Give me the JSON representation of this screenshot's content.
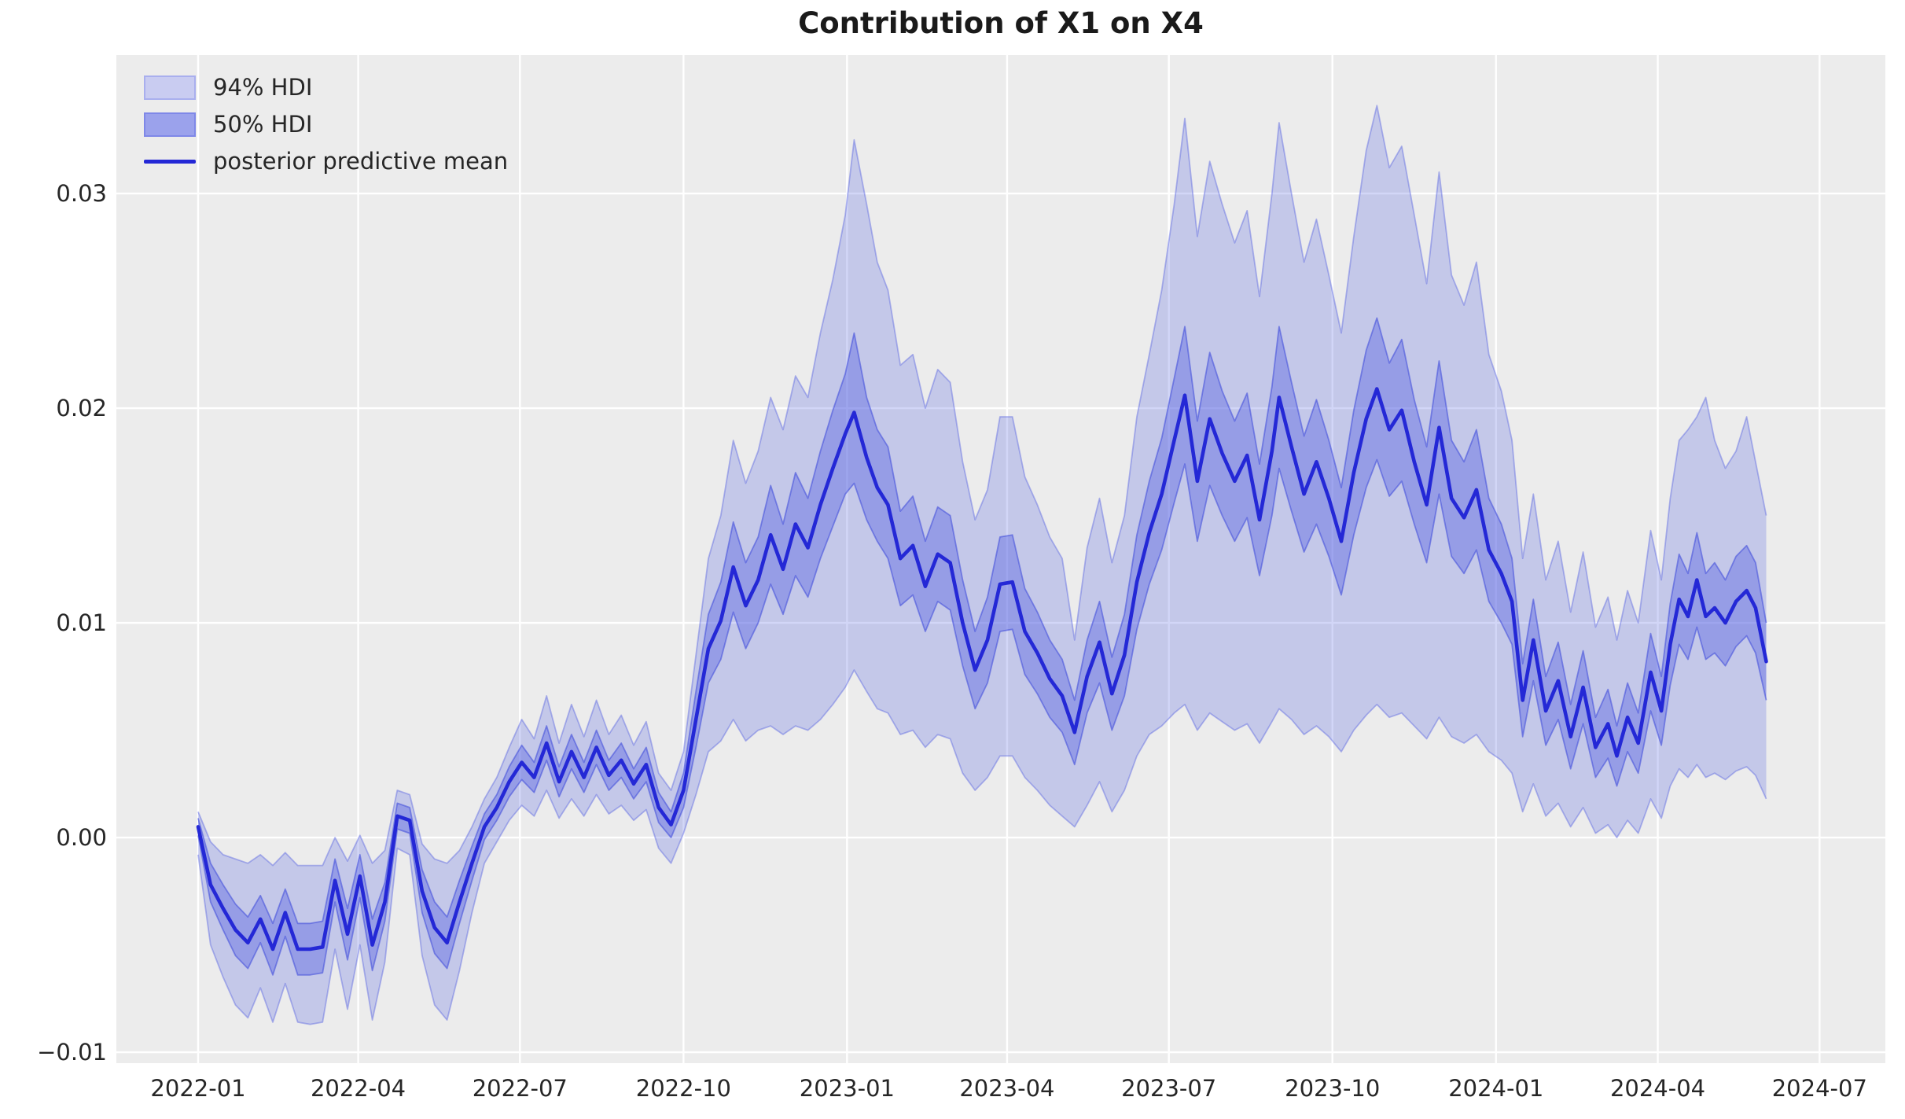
{
  "title": "Contribution of X1 on X4",
  "legend": {
    "items": [
      {
        "label": "94% HDI",
        "type": "patch",
        "fill": "#c9ccf1",
        "border": "#a9afee"
      },
      {
        "label": "50% HDI",
        "type": "patch",
        "fill": "#9ba2ec",
        "border": "#7f88e8"
      },
      {
        "label": "posterior predictive mean",
        "type": "line",
        "stroke": "#2428d6"
      }
    ]
  },
  "chart_data": {
    "type": "line",
    "title": "Contribution of X1 on X4",
    "xlabel": "",
    "ylabel": "",
    "grid": true,
    "legend_position": "upper left",
    "figure_bg": "#ffffff",
    "axes_bg": "#ececec",
    "gridline_color": "#ffffff",
    "colors": {
      "hdi94_fill": "rgba(80,95,224,0.26)",
      "hdi94_edge": "rgba(90,102,226,0.45)",
      "hdi50_fill": "rgba(85,97,226,0.42)",
      "hdi50_edge": "rgba(70,82,220,0.60)",
      "mean_line": "#2428d6"
    },
    "xlim": [
      "2021-11-16",
      "2024-08-07"
    ],
    "ylim": [
      -0.01051,
      0.03645
    ],
    "x_ticks": [
      {
        "date": "2022-01-01",
        "label": "2022-01"
      },
      {
        "date": "2022-04-01",
        "label": "2022-04"
      },
      {
        "date": "2022-07-01",
        "label": "2022-07"
      },
      {
        "date": "2022-10-01",
        "label": "2022-10"
      },
      {
        "date": "2023-01-01",
        "label": "2023-01"
      },
      {
        "date": "2023-04-01",
        "label": "2023-04"
      },
      {
        "date": "2023-07-01",
        "label": "2023-07"
      },
      {
        "date": "2023-10-01",
        "label": "2023-10"
      },
      {
        "date": "2024-01-01",
        "label": "2024-01"
      },
      {
        "date": "2024-04-01",
        "label": "2024-04"
      },
      {
        "date": "2024-07-01",
        "label": "2024-07"
      }
    ],
    "y_ticks": [
      {
        "value": -0.01,
        "label": "−0.01"
      },
      {
        "value": 0.0,
        "label": "0.00"
      },
      {
        "value": 0.01,
        "label": "0.01"
      },
      {
        "value": 0.02,
        "label": "0.02"
      },
      {
        "value": 0.03,
        "label": "0.03"
      }
    ],
    "series_names": [
      "94% HDI",
      "50% HDI",
      "posterior predictive mean"
    ],
    "columns": [
      "date",
      "hdi94_lower",
      "hdi50_lower",
      "mean",
      "hdi50_upper",
      "hdi94_upper"
    ],
    "points": [
      [
        "2022-01-01",
        -0.0008,
        0.0001,
        0.0005,
        0.0009,
        0.0012
      ],
      [
        "2022-01-08",
        -0.005,
        -0.003,
        -0.0022,
        -0.0012,
        -0.0002
      ],
      [
        "2022-01-15",
        -0.0065,
        -0.0043,
        -0.0033,
        -0.0022,
        -0.0008
      ],
      [
        "2022-01-22",
        -0.0078,
        -0.0055,
        -0.0043,
        -0.0031,
        -0.001
      ],
      [
        "2022-01-29",
        -0.0084,
        -0.0061,
        -0.0049,
        -0.0037,
        -0.0012
      ],
      [
        "2022-02-05",
        -0.007,
        -0.0049,
        -0.0038,
        -0.0027,
        -0.0008
      ],
      [
        "2022-02-12",
        -0.0086,
        -0.0064,
        -0.0052,
        -0.004,
        -0.0013
      ],
      [
        "2022-02-19",
        -0.0068,
        -0.0046,
        -0.0035,
        -0.0024,
        -0.0007
      ],
      [
        "2022-02-26",
        -0.0086,
        -0.0064,
        -0.0052,
        -0.004,
        -0.0013
      ],
      [
        "2022-03-05",
        -0.0087,
        -0.0064,
        -0.0052,
        -0.004,
        -0.0013
      ],
      [
        "2022-03-12",
        -0.0086,
        -0.0063,
        -0.0051,
        -0.0039,
        -0.0013
      ],
      [
        "2022-03-19",
        -0.0052,
        -0.003,
        -0.002,
        -0.001,
        0.0
      ],
      [
        "2022-03-26",
        -0.008,
        -0.0057,
        -0.0045,
        -0.0033,
        -0.0011
      ],
      [
        "2022-04-02",
        -0.005,
        -0.0028,
        -0.0018,
        -0.0008,
        0.0001
      ],
      [
        "2022-04-09",
        -0.0085,
        -0.0062,
        -0.005,
        -0.0038,
        -0.0012
      ],
      [
        "2022-04-16",
        -0.0058,
        -0.0039,
        -0.003,
        -0.0021,
        -0.0006
      ],
      [
        "2022-04-23",
        -0.0005,
        0.0004,
        0.001,
        0.0016,
        0.0022
      ],
      [
        "2022-04-30",
        -0.0008,
        0.0002,
        0.0008,
        0.0014,
        0.002
      ],
      [
        "2022-05-07",
        -0.0055,
        -0.0035,
        -0.0025,
        -0.0015,
        -0.0003
      ],
      [
        "2022-05-14",
        -0.0078,
        -0.0054,
        -0.0042,
        -0.003,
        -0.001
      ],
      [
        "2022-05-21",
        -0.0085,
        -0.0061,
        -0.0049,
        -0.0037,
        -0.0012
      ],
      [
        "2022-05-28",
        -0.0062,
        -0.004,
        -0.003,
        -0.002,
        -0.0006
      ],
      [
        "2022-06-04",
        -0.0035,
        -0.002,
        -0.0012,
        -0.0004,
        0.0005
      ],
      [
        "2022-06-11",
        -0.0012,
        -0.0001,
        0.0005,
        0.0011,
        0.0018
      ],
      [
        "2022-06-18",
        -0.0002,
        0.0008,
        0.0014,
        0.002,
        0.0028
      ],
      [
        "2022-06-25",
        0.0008,
        0.0019,
        0.0026,
        0.0033,
        0.0042
      ],
      [
        "2022-07-02",
        0.0015,
        0.0027,
        0.0035,
        0.0043,
        0.0055
      ],
      [
        "2022-07-09",
        0.001,
        0.0021,
        0.0028,
        0.0035,
        0.0046
      ],
      [
        "2022-07-16",
        0.0022,
        0.0036,
        0.0044,
        0.0052,
        0.0066
      ],
      [
        "2022-07-23",
        0.0009,
        0.0019,
        0.0026,
        0.0033,
        0.0044
      ],
      [
        "2022-07-30",
        0.0018,
        0.0032,
        0.004,
        0.0048,
        0.0062
      ],
      [
        "2022-08-06",
        0.001,
        0.0021,
        0.0028,
        0.0035,
        0.0047
      ],
      [
        "2022-08-13",
        0.002,
        0.0034,
        0.0042,
        0.005,
        0.0064
      ],
      [
        "2022-08-20",
        0.0011,
        0.0022,
        0.0029,
        0.0036,
        0.0048
      ],
      [
        "2022-08-27",
        0.0015,
        0.0028,
        0.0036,
        0.0044,
        0.0057
      ],
      [
        "2022-09-03",
        0.0008,
        0.0018,
        0.0025,
        0.0032,
        0.0043
      ],
      [
        "2022-09-10",
        0.0013,
        0.0026,
        0.0034,
        0.0042,
        0.0054
      ],
      [
        "2022-09-17",
        -0.0005,
        0.0007,
        0.0014,
        0.0021,
        0.003
      ],
      [
        "2022-09-24",
        -0.0012,
        0.0,
        0.0006,
        0.0012,
        0.0022
      ],
      [
        "2022-10-01",
        0.0002,
        0.0014,
        0.0022,
        0.003,
        0.004
      ],
      [
        "2022-10-08",
        0.002,
        0.0042,
        0.0055,
        0.0068,
        0.0085
      ],
      [
        "2022-10-15",
        0.004,
        0.0072,
        0.0088,
        0.0104,
        0.013
      ],
      [
        "2022-10-22",
        0.0045,
        0.0083,
        0.0101,
        0.0119,
        0.015
      ],
      [
        "2022-10-29",
        0.0055,
        0.0105,
        0.0126,
        0.0147,
        0.0185
      ],
      [
        "2022-11-05",
        0.0045,
        0.0088,
        0.0108,
        0.0128,
        0.0165
      ],
      [
        "2022-11-12",
        0.005,
        0.01,
        0.012,
        0.014,
        0.018
      ],
      [
        "2022-11-19",
        0.0052,
        0.0118,
        0.0141,
        0.0164,
        0.0205
      ],
      [
        "2022-11-26",
        0.0048,
        0.0104,
        0.0125,
        0.0146,
        0.019
      ],
      [
        "2022-12-03",
        0.0052,
        0.0122,
        0.0146,
        0.017,
        0.0215
      ],
      [
        "2022-12-10",
        0.005,
        0.0112,
        0.0135,
        0.0158,
        0.0205
      ],
      [
        "2022-12-17",
        0.0055,
        0.013,
        0.0155,
        0.018,
        0.0235
      ],
      [
        "2022-12-24",
        0.0062,
        0.0145,
        0.0172,
        0.0199,
        0.026
      ],
      [
        "2022-12-31",
        0.007,
        0.016,
        0.0188,
        0.0216,
        0.029
      ],
      [
        "2023-01-05",
        0.0078,
        0.0165,
        0.0198,
        0.0235,
        0.0325
      ],
      [
        "2023-01-12",
        0.0068,
        0.0148,
        0.0177,
        0.0205,
        0.0295
      ],
      [
        "2023-01-18",
        0.006,
        0.0138,
        0.0163,
        0.019,
        0.0268
      ],
      [
        "2023-01-24",
        0.0058,
        0.013,
        0.0155,
        0.0182,
        0.0255
      ],
      [
        "2023-01-31",
        0.0048,
        0.0108,
        0.013,
        0.0152,
        0.022
      ],
      [
        "2023-02-07",
        0.005,
        0.0113,
        0.0136,
        0.0159,
        0.0225
      ],
      [
        "2023-02-14",
        0.0042,
        0.0096,
        0.0117,
        0.0138,
        0.02
      ],
      [
        "2023-02-21",
        0.0048,
        0.011,
        0.0132,
        0.0154,
        0.0218
      ],
      [
        "2023-02-28",
        0.0046,
        0.0106,
        0.0128,
        0.015,
        0.0212
      ],
      [
        "2023-03-07",
        0.003,
        0.008,
        0.01,
        0.012,
        0.0175
      ],
      [
        "2023-03-14",
        0.0022,
        0.006,
        0.0078,
        0.0096,
        0.0148
      ],
      [
        "2023-03-21",
        0.0028,
        0.0072,
        0.0092,
        0.0112,
        0.0162
      ],
      [
        "2023-03-28",
        0.0038,
        0.0096,
        0.0118,
        0.014,
        0.0196
      ],
      [
        "2023-04-04",
        0.0038,
        0.0097,
        0.0119,
        0.0141,
        0.0196
      ],
      [
        "2023-04-11",
        0.0028,
        0.0076,
        0.0096,
        0.0116,
        0.0168
      ],
      [
        "2023-04-18",
        0.0022,
        0.0067,
        0.0086,
        0.0105,
        0.0155
      ],
      [
        "2023-04-25",
        0.0015,
        0.0056,
        0.0074,
        0.0092,
        0.014
      ],
      [
        "2023-05-02",
        0.001,
        0.0049,
        0.0066,
        0.0083,
        0.013
      ],
      [
        "2023-05-09",
        0.0005,
        0.0034,
        0.0049,
        0.0064,
        0.0092
      ],
      [
        "2023-05-16",
        0.0015,
        0.0058,
        0.0075,
        0.0092,
        0.0135
      ],
      [
        "2023-05-23",
        0.0026,
        0.0072,
        0.0091,
        0.011,
        0.0158
      ],
      [
        "2023-05-30",
        0.0012,
        0.005,
        0.0067,
        0.0084,
        0.0128
      ],
      [
        "2023-06-06",
        0.0022,
        0.0066,
        0.0085,
        0.0104,
        0.015
      ],
      [
        "2023-06-13",
        0.0038,
        0.0097,
        0.0119,
        0.0141,
        0.0196
      ],
      [
        "2023-06-20",
        0.0048,
        0.0118,
        0.0142,
        0.0166,
        0.0225
      ],
      [
        "2023-06-27",
        0.0052,
        0.0134,
        0.016,
        0.0186,
        0.0255
      ],
      [
        "2023-07-04",
        0.0058,
        0.0156,
        0.0185,
        0.0214,
        0.0295
      ],
      [
        "2023-07-10",
        0.0062,
        0.0174,
        0.0206,
        0.0238,
        0.0335
      ],
      [
        "2023-07-17",
        0.005,
        0.0138,
        0.0166,
        0.0194,
        0.028
      ],
      [
        "2023-07-24",
        0.0058,
        0.0164,
        0.0195,
        0.0226,
        0.0315
      ],
      [
        "2023-07-31",
        0.0054,
        0.015,
        0.0179,
        0.0208,
        0.0295
      ],
      [
        "2023-08-07",
        0.005,
        0.0138,
        0.0166,
        0.0194,
        0.0277
      ],
      [
        "2023-08-14",
        0.0053,
        0.0149,
        0.0178,
        0.0207,
        0.0292
      ],
      [
        "2023-08-21",
        0.0044,
        0.0122,
        0.0148,
        0.0174,
        0.0252
      ],
      [
        "2023-08-28",
        0.0054,
        0.015,
        0.018,
        0.021,
        0.03
      ],
      [
        "2023-09-01",
        0.006,
        0.0172,
        0.0205,
        0.0238,
        0.0333
      ],
      [
        "2023-09-08",
        0.0055,
        0.0152,
        0.0182,
        0.0212,
        0.03
      ],
      [
        "2023-09-15",
        0.0048,
        0.0133,
        0.016,
        0.0187,
        0.0268
      ],
      [
        "2023-09-22",
        0.0052,
        0.0146,
        0.0175,
        0.0204,
        0.0288
      ],
      [
        "2023-09-29",
        0.0047,
        0.0131,
        0.0158,
        0.0185,
        0.0262
      ],
      [
        "2023-10-06",
        0.004,
        0.0113,
        0.0138,
        0.0163,
        0.0235
      ],
      [
        "2023-10-13",
        0.005,
        0.0141,
        0.017,
        0.0199,
        0.028
      ],
      [
        "2023-10-20",
        0.0057,
        0.0163,
        0.0195,
        0.0227,
        0.032
      ],
      [
        "2023-10-26",
        0.0062,
        0.0176,
        0.0209,
        0.0242,
        0.0341
      ],
      [
        "2023-11-02",
        0.0056,
        0.0159,
        0.019,
        0.0221,
        0.0312
      ],
      [
        "2023-11-09",
        0.0058,
        0.0166,
        0.0199,
        0.0232,
        0.0322
      ],
      [
        "2023-11-16",
        0.0052,
        0.0146,
        0.0175,
        0.0204,
        0.029
      ],
      [
        "2023-11-23",
        0.0046,
        0.0128,
        0.0155,
        0.0182,
        0.0258
      ],
      [
        "2023-11-30",
        0.0056,
        0.016,
        0.0191,
        0.0222,
        0.031
      ],
      [
        "2023-12-07",
        0.0047,
        0.0131,
        0.0158,
        0.0185,
        0.0262
      ],
      [
        "2023-12-14",
        0.0044,
        0.0123,
        0.0149,
        0.0175,
        0.0248
      ],
      [
        "2023-12-21",
        0.0048,
        0.0134,
        0.0162,
        0.019,
        0.0268
      ],
      [
        "2023-12-28",
        0.004,
        0.011,
        0.0134,
        0.0158,
        0.0225
      ],
      [
        "2024-01-04",
        0.0036,
        0.01,
        0.0123,
        0.0146,
        0.0208
      ],
      [
        "2024-01-10",
        0.003,
        0.009,
        0.011,
        0.013,
        0.0185
      ],
      [
        "2024-01-16",
        0.0012,
        0.0047,
        0.0064,
        0.0081,
        0.013
      ],
      [
        "2024-01-22",
        0.0025,
        0.0073,
        0.0092,
        0.0111,
        0.016
      ],
      [
        "2024-01-29",
        0.001,
        0.0043,
        0.0059,
        0.0075,
        0.012
      ],
      [
        "2024-02-05",
        0.0016,
        0.0055,
        0.0073,
        0.0091,
        0.0138
      ],
      [
        "2024-02-12",
        0.0005,
        0.0032,
        0.0047,
        0.0062,
        0.0105
      ],
      [
        "2024-02-19",
        0.0014,
        0.0053,
        0.007,
        0.0087,
        0.0133
      ],
      [
        "2024-02-26",
        0.0002,
        0.0028,
        0.0042,
        0.0056,
        0.0098
      ],
      [
        "2024-03-04",
        0.0006,
        0.0037,
        0.0053,
        0.0069,
        0.0112
      ],
      [
        "2024-03-09",
        0.0,
        0.0024,
        0.0038,
        0.0052,
        0.0092
      ],
      [
        "2024-03-15",
        0.0008,
        0.004,
        0.0056,
        0.0072,
        0.0115
      ],
      [
        "2024-03-21",
        0.0002,
        0.003,
        0.0044,
        0.0058,
        0.01
      ],
      [
        "2024-03-28",
        0.0018,
        0.0059,
        0.0077,
        0.0095,
        0.0143
      ],
      [
        "2024-04-03",
        0.0009,
        0.0043,
        0.0059,
        0.0075,
        0.012
      ],
      [
        "2024-04-08",
        0.0024,
        0.0071,
        0.009,
        0.0109,
        0.0158
      ],
      [
        "2024-04-13",
        0.0032,
        0.009,
        0.0111,
        0.0132,
        0.0185
      ],
      [
        "2024-04-18",
        0.0028,
        0.0083,
        0.0103,
        0.0123,
        0.019
      ],
      [
        "2024-04-23",
        0.0034,
        0.0098,
        0.012,
        0.0142,
        0.0196
      ],
      [
        "2024-04-28",
        0.0028,
        0.0083,
        0.0103,
        0.0123,
        0.0205
      ],
      [
        "2024-05-03",
        0.003,
        0.0086,
        0.0107,
        0.0128,
        0.0185
      ],
      [
        "2024-05-09",
        0.0027,
        0.008,
        0.01,
        0.012,
        0.0172
      ],
      [
        "2024-05-15",
        0.0031,
        0.0089,
        0.011,
        0.0131,
        0.018
      ],
      [
        "2024-05-21",
        0.0033,
        0.0094,
        0.0115,
        0.0136,
        0.0196
      ],
      [
        "2024-05-26",
        0.0029,
        0.0086,
        0.0107,
        0.0128,
        0.0175
      ],
      [
        "2024-06-01",
        0.0018,
        0.0064,
        0.0082,
        0.01,
        0.015
      ]
    ]
  }
}
